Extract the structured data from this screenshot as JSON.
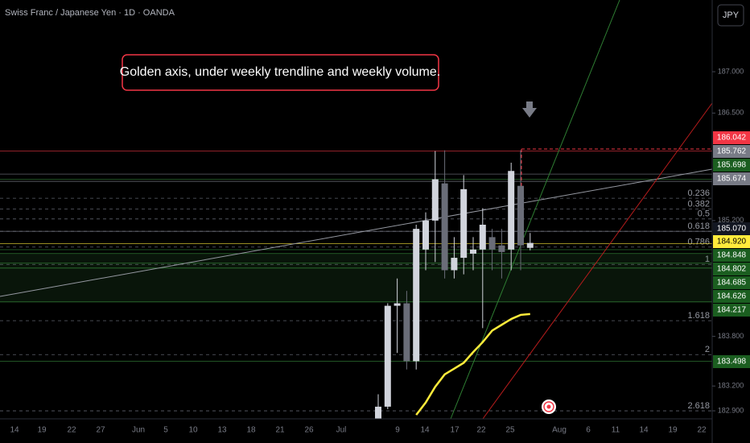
{
  "header": {
    "title": "Swiss Franc / Japanese Yen · 1D · OANDA",
    "currency": "JPY"
  },
  "chart_data": {
    "type": "candlestick",
    "annotation": "Golden axis, under weekly trendline and weekly volume.",
    "open": [
      182.78,
      182.95,
      184.17,
      184.2,
      183.5,
      184.85,
      185.2,
      185.65,
      184.6,
      184.75,
      184.8,
      184.85,
      185.0,
      184.9,
      184.85,
      185.62,
      184.87
    ],
    "high": [
      183.1,
      184.2,
      184.5,
      184.35,
      185.15,
      185.3,
      186.04,
      186.05,
      185.0,
      185.75,
      185.0,
      185.35,
      185.1,
      185.1,
      185.9,
      186.05,
      185.05
    ],
    "low": [
      182.74,
      182.92,
      183.6,
      183.4,
      183.4,
      184.6,
      184.7,
      184.5,
      184.5,
      184.55,
      184.6,
      183.9,
      184.6,
      184.5,
      184.6,
      184.6,
      184.84
    ],
    "close": [
      182.95,
      184.17,
      184.2,
      183.5,
      185.1,
      185.2,
      185.7,
      184.6,
      184.75,
      185.58,
      184.85,
      185.15,
      184.85,
      184.82,
      185.8,
      184.9,
      184.93
    ],
    "up_color": "#d1d4dc",
    "down_color": "#6a6d78",
    "moving_average": {
      "color": "#ffeb3b",
      "values": [
        null,
        null,
        null,
        null,
        182.85,
        183.0,
        183.19,
        183.34,
        183.41,
        183.48,
        183.61,
        183.73,
        183.87,
        183.94,
        184.01,
        184.06,
        184.07
      ]
    },
    "ylim": [
      182.803,
      187.867
    ],
    "yticks": [
      {
        "value": 187,
        "label": "187.000"
      },
      {
        "value": 186.5,
        "label": "186.500"
      },
      {
        "value": 185.2,
        "label": "185.200"
      },
      {
        "value": 183.8,
        "label": "183.800"
      },
      {
        "value": 183.2,
        "label": "183.200"
      },
      {
        "value": 182.9,
        "label": "182.900"
      }
    ],
    "x_axis_labels": [
      "14",
      "19",
      "22",
      "27",
      "Jun",
      "5",
      "10",
      "13",
      "18",
      "21",
      "26",
      "Jul",
      "9",
      "14",
      "17",
      "22",
      "25",
      "Aug",
      "6",
      "11",
      "14",
      "19",
      "22"
    ],
    "fib_levels": [
      {
        "value": 185.47,
        "label": "0.236"
      },
      {
        "value": 185.34,
        "label": "0.382"
      },
      {
        "value": 185.22,
        "label": "0.5"
      },
      {
        "value": 185.07,
        "label": "0.618"
      },
      {
        "value": 184.88,
        "label": "0.786"
      },
      {
        "value": 184.67,
        "label": "1"
      },
      {
        "value": 183.99,
        "label": "1.618"
      },
      {
        "value": 183.58,
        "label": "2"
      },
      {
        "value": 182.9,
        "label": "2.618"
      }
    ],
    "price_tags": [
      {
        "value": 186.042,
        "label": "186.042",
        "color": "#f23645"
      },
      {
        "value": 185.762,
        "label": "185.762",
        "color": "#787b86"
      },
      {
        "value": 185.698,
        "label": "185.698",
        "color": "#1b5e20"
      },
      {
        "value": 185.674,
        "label": "185.674",
        "color": "#787b86"
      },
      {
        "value": 185.07,
        "label": "185.070",
        "color": "#131722"
      },
      {
        "value": 184.92,
        "label": "184.920",
        "color": "#ffeb3b"
      },
      {
        "value": 184.848,
        "label": "184.848",
        "color": "#1b5e20"
      },
      {
        "value": 184.802,
        "label": "184.802",
        "color": "#1b5e20"
      },
      {
        "value": 184.685,
        "label": "184.685",
        "color": "#1b5e20"
      },
      {
        "value": 184.626,
        "label": "184.626",
        "color": "#1b5e20"
      },
      {
        "value": 184.217,
        "label": "184.217",
        "color": "#1b5e20"
      },
      {
        "value": 183.498,
        "label": "183.498",
        "color": "#1b5e20"
      }
    ]
  }
}
